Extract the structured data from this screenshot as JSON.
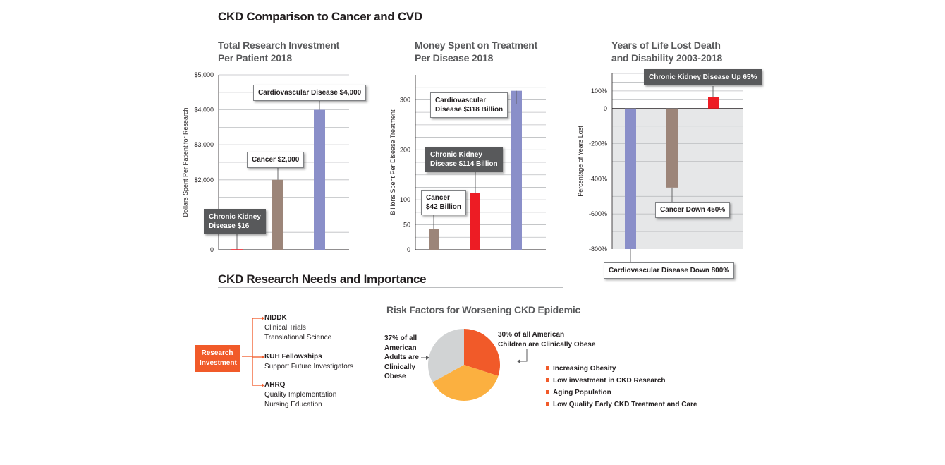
{
  "page_title": "CKD Comparison to Cancer and CVD",
  "section2_title": "CKD Research Needs and Importance",
  "chart_data": [
    {
      "type": "bar",
      "title": "Total  Research Investment Per Patient 2018",
      "title_line1": "Total  Research Investment",
      "title_line2": "Per Patient 2018",
      "ylabel": "Dollars Spent Per Patient for Research",
      "ylim": [
        0,
        5000
      ],
      "yticks": [
        0,
        2000,
        3000,
        4000,
        5000
      ],
      "ytick_labels": [
        "0",
        "$2,000",
        "$3,000",
        "$4,000",
        "$5,000"
      ],
      "categories": [
        "Chronic Kidney Disease",
        "Cancer",
        "Cardiovascular Disease"
      ],
      "values": [
        16,
        2000,
        4000
      ],
      "colors": [
        "#ed1c24",
        "#9c8579",
        "#8a8fc9"
      ],
      "annotations": [
        {
          "line1": "Chronic Kidney",
          "line2": "Disease $16",
          "style": "dark"
        },
        {
          "line1": "Cancer $2,000",
          "line2": "",
          "style": "light"
        },
        {
          "line1": "Cardiovascular Disease $4,000",
          "line2": "",
          "style": "light"
        }
      ]
    },
    {
      "type": "bar",
      "title": "Money Spent on Treatment Per Disease 2018",
      "title_line1": "Money Spent on Treatment",
      "title_line2": "Per Disease 2018",
      "ylabel": "Billions  Spent Per Disease Treatment",
      "ylim": [
        0,
        350
      ],
      "yticks": [
        0,
        50,
        100,
        200,
        300
      ],
      "ytick_labels": [
        "0",
        "50",
        "100",
        "200",
        "300"
      ],
      "categories": [
        "Cancer",
        "Chronic Kidney Disease",
        "Cardiovascular Disease"
      ],
      "values": [
        42,
        114,
        318
      ],
      "colors": [
        "#9c8579",
        "#ed1c24",
        "#8a8fc9"
      ],
      "annotations": [
        {
          "line1": "Cancer",
          "line2": "$42 Billion",
          "style": "light"
        },
        {
          "line1": "Chronic Kidney",
          "line2": "Disease $114 Billion",
          "style": "dark"
        },
        {
          "line1": "Cardiovascular",
          "line2": "Disease $318 Billion",
          "style": "light"
        }
      ]
    },
    {
      "type": "bar",
      "title": "Years of Life Lost Death and Disability 2003-2018",
      "title_line1": "Years of Life Lost Death",
      "title_line2": "and Disability 2003-2018",
      "ylabel": "Percentage of Years Lost",
      "ylim": [
        -800,
        200
      ],
      "yticks": [
        100,
        0,
        -200,
        -400,
        -600,
        -800
      ],
      "ytick_labels": [
        "100%",
        "0",
        "-200%",
        "-400%",
        "-600%",
        "-800%"
      ],
      "categories": [
        "Cardiovascular Disease",
        "Cancer",
        "Chronic Kidney Disease"
      ],
      "values": [
        -800,
        -450,
        65
      ],
      "colors": [
        "#8a8fc9",
        "#9c8579",
        "#ed1c24"
      ],
      "annotations": [
        {
          "line1": "Cardiovascular Disease Down 800%",
          "line2": "",
          "style": "light"
        },
        {
          "line1": "Cancer Down 450%",
          "line2": "",
          "style": "light"
        },
        {
          "line1": "Chronic Kidney Disease Up 65%",
          "line2": "",
          "style": "dark"
        }
      ]
    },
    {
      "type": "pie",
      "title": "Risk Factors for Worsening CKD Epidemic",
      "values": [
        30,
        37,
        33
      ],
      "colors": [
        "#f15a29",
        "#fbb040",
        "#d1d3d4"
      ],
      "annotations": [
        {
          "line1": "30% of all American",
          "line2": "Children are Clinically Obese"
        },
        {
          "lines": [
            "37% of all",
            "American",
            "Adults are",
            "Clinically",
            "Obese"
          ]
        }
      ]
    }
  ],
  "research": {
    "box_line1": "Research",
    "box_line2": "Investment",
    "items": [
      {
        "title": "NIDDK",
        "lines": [
          "Clinical Trials",
          "Translational Science"
        ]
      },
      {
        "title": "KUH Fellowships",
        "lines": [
          "Support Future Investigators"
        ]
      },
      {
        "title": "AHRQ",
        "lines": [
          "Quality Implementation",
          "Nursing Education"
        ]
      }
    ]
  },
  "risk_factors": [
    "Increasing Obesity",
    "Low investment in CKD Research",
    "Aging Population",
    "Low Quality Early CKD Treatment and Care"
  ],
  "colors": {
    "accent": "#f15a29",
    "ckd_red": "#ed1c24",
    "cancer": "#9c8579",
    "cvd": "#8a8fc9",
    "callout_dark": "#58595b"
  }
}
